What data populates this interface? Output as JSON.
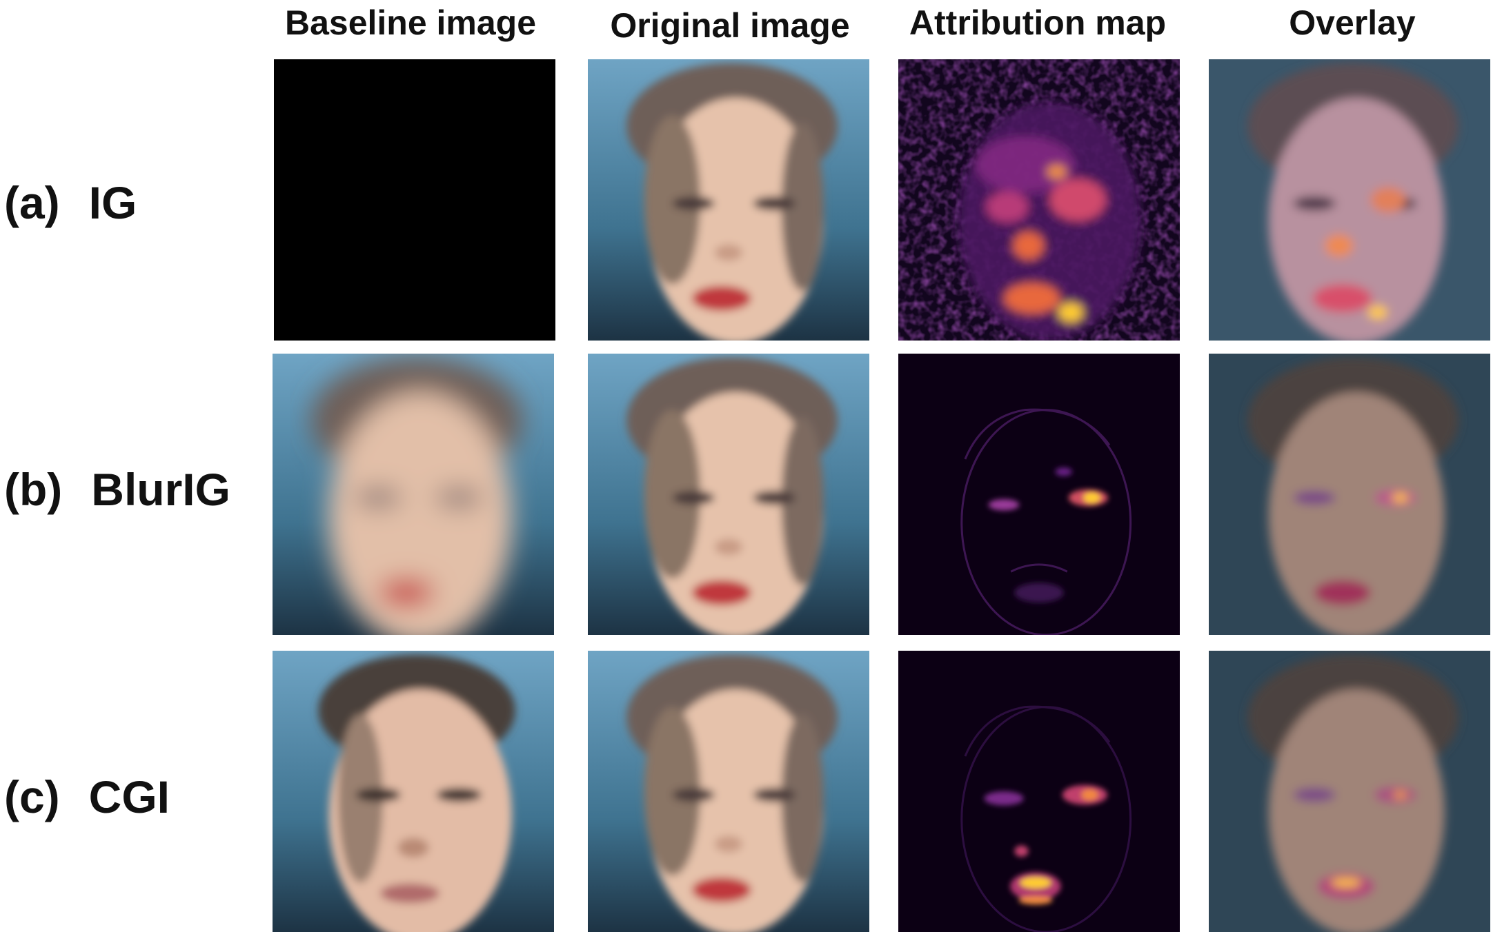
{
  "columns": [
    "Baseline image",
    "Original image",
    "Attribution map",
    "Overlay"
  ],
  "rows": [
    {
      "tag": "(a)",
      "method": "IG"
    },
    {
      "tag": "(b)",
      "method": "BlurIG"
    },
    {
      "tag": "(c)",
      "method": "CGI"
    }
  ],
  "colors": {
    "attribution_bg": "#0c0014",
    "attribution_hot": "#ffcc33",
    "attribution_mid": "#c03a8a",
    "background_blue": "#4f89a8",
    "skin": "#e9c3ad",
    "lips": "#c0383c"
  }
}
